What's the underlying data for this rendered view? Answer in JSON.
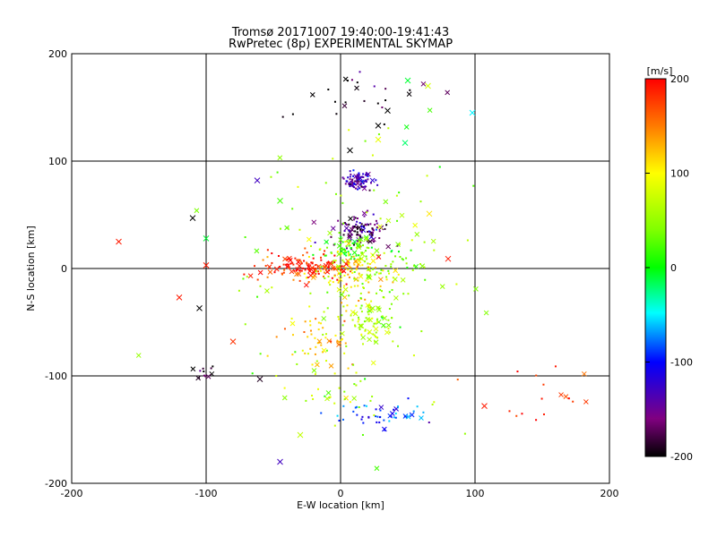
{
  "chart_data": {
    "type": "scatter",
    "title": "Tromsø 20171007 19:40:00-19:41:43",
    "subtitle": "RwPretec (8p) EXPERIMENTAL SKYMAP",
    "xlabel": "E-W location [km]",
    "ylabel": "N-S location [km]",
    "xlim": [
      -200,
      200
    ],
    "ylim": [
      -200,
      200
    ],
    "xticks": [
      -200,
      -100,
      0,
      100,
      200
    ],
    "yticks": [
      -200,
      -100,
      0,
      100,
      200
    ],
    "grid": true,
    "colorbar": {
      "label": "[m/s]",
      "range": [
        -200,
        200
      ],
      "ticks": [
        "200",
        "100",
        "0",
        "-100",
        "-200"
      ],
      "position": "right"
    },
    "clusters": [
      {
        "x": 13,
        "y": 82,
        "vel": -140,
        "n": 90,
        "sx": 5,
        "sy": 4
      },
      {
        "x": 15,
        "y": 35,
        "vel": -165,
        "n": 110,
        "sx": 10,
        "sy": 7
      },
      {
        "x": 5,
        "y": 18,
        "vel": 20,
        "n": 70,
        "sx": 10,
        "sy": 6
      },
      {
        "x": -25,
        "y": 2,
        "vel": 190,
        "n": 140,
        "sx": 22,
        "sy": 6
      },
      {
        "x": 10,
        "y": -5,
        "vel": 110,
        "n": 90,
        "sx": 15,
        "sy": 12
      },
      {
        "x": 22,
        "y": -50,
        "vel": 60,
        "n": 80,
        "sx": 10,
        "sy": 14
      },
      {
        "x": -15,
        "y": -70,
        "vel": 120,
        "n": 50,
        "sx": 15,
        "sy": 14
      },
      {
        "x": 35,
        "y": 5,
        "vel": 40,
        "n": 40,
        "sx": 15,
        "sy": 12
      },
      {
        "x": 30,
        "y": -135,
        "vel": -90,
        "n": 50,
        "sx": 18,
        "sy": 6
      },
      {
        "x": 0,
        "y": -120,
        "vel": 60,
        "n": 25,
        "sx": 15,
        "sy": 14
      },
      {
        "x": 15,
        "y": 160,
        "vel": -190,
        "n": 25,
        "sx": 25,
        "sy": 12
      },
      {
        "x": 150,
        "y": -120,
        "vel": 190,
        "n": 18,
        "sx": 20,
        "sy": 14
      },
      {
        "x": -100,
        "y": -97,
        "vel": -195,
        "n": 12,
        "sx": 5,
        "sy": 4
      },
      {
        "x": 0,
        "y": 0,
        "vel": 50,
        "n": 140,
        "sx": 50,
        "sy": 70
      }
    ],
    "crosses": [
      {
        "x": -165,
        "y": 25,
        "vel": 190
      },
      {
        "x": -120,
        "y": -27,
        "vel": 190
      },
      {
        "x": -110,
        "y": 47,
        "vel": -200
      },
      {
        "x": -105,
        "y": -37,
        "vel": -200
      },
      {
        "x": -100,
        "y": 28,
        "vel": -10
      },
      {
        "x": -100,
        "y": 3,
        "vel": 190
      },
      {
        "x": -80,
        "y": -68,
        "vel": 180
      },
      {
        "x": -62,
        "y": 82,
        "vel": -130
      },
      {
        "x": -60,
        "y": -103,
        "vel": -190
      },
      {
        "x": -45,
        "y": -180,
        "vel": -130
      },
      {
        "x": -30,
        "y": -155,
        "vel": 70
      },
      {
        "x": 35,
        "y": 147,
        "vel": -200
      },
      {
        "x": 50,
        "y": 175,
        "vel": -10
      },
      {
        "x": 65,
        "y": 170,
        "vel": 80
      },
      {
        "x": 98,
        "y": 145,
        "vel": -50
      },
      {
        "x": 28,
        "y": 133,
        "vel": -200
      },
      {
        "x": 48,
        "y": 117,
        "vel": -20
      },
      {
        "x": 7,
        "y": 110,
        "vel": -200
      },
      {
        "x": 28,
        "y": 120,
        "vel": 90
      },
      {
        "x": 80,
        "y": 9,
        "vel": 190
      },
      {
        "x": 107,
        "y": -128,
        "vel": 190
      },
      {
        "x": 66,
        "y": 51,
        "vel": 110
      },
      {
        "x": -45,
        "y": 63,
        "vel": 20
      }
    ]
  }
}
